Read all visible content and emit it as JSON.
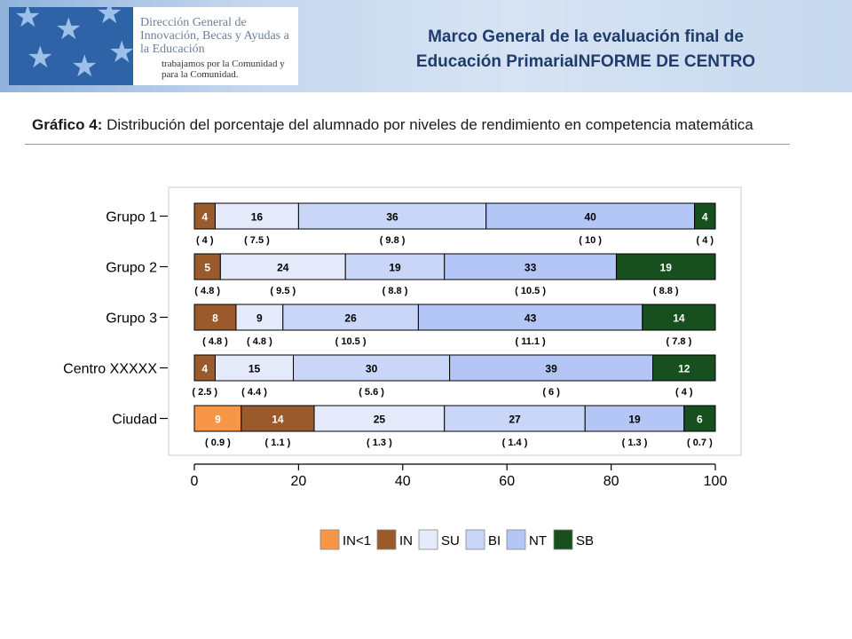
{
  "header": {
    "logo_text": "Dirección General de Innovación, Becas y Ayudas a la Educación",
    "logo_sub": "trabajamos por la Comunidad y para la Comunidad.",
    "title_line1": "Marco General de la evaluación final de",
    "title_line2": "Educación PrimariaINFORME DE CENTRO",
    "logo_mark_icon": "star-pattern-icon"
  },
  "chart_data": {
    "type": "bar",
    "orientation": "horizontal",
    "stacked": true,
    "title_label": "Gráfico 4:",
    "title": "Distribución del porcentaje del alumnado por niveles de rendimiento en competencia matemática",
    "xlim": [
      0,
      100
    ],
    "x_ticks": [
      0,
      20,
      40,
      60,
      80,
      100
    ],
    "legend_position": "bottom",
    "categories": [
      "Grupo 1",
      "Grupo 2",
      "Grupo 3",
      "Centro XXXXX",
      "Ciudad"
    ],
    "levels": [
      {
        "name": "IN<1",
        "color": "#f79646"
      },
      {
        "name": "IN",
        "color": "#9b5a2b"
      },
      {
        "name": "SU",
        "color": "#e5eafa"
      },
      {
        "name": "BI",
        "color": "#c9d6f7"
      },
      {
        "name": "NT",
        "color": "#b3c6f5"
      },
      {
        "name": "SB",
        "color": "#174f1f"
      }
    ],
    "rows": [
      {
        "category": "Grupo 1",
        "segments": [
          {
            "level": "IN",
            "value": 4,
            "se": "( 4 )"
          },
          {
            "level": "SU",
            "value": 16,
            "se": "( 7.5 )"
          },
          {
            "level": "BI",
            "value": 36,
            "se": "( 9.8 )"
          },
          {
            "level": "NT",
            "value": 40,
            "se": "( 10 )"
          },
          {
            "level": "SB",
            "value": 4,
            "se": "( 4 )"
          }
        ]
      },
      {
        "category": "Grupo 2",
        "segments": [
          {
            "level": "IN",
            "value": 5,
            "se": "( 4.8 )"
          },
          {
            "level": "SU",
            "value": 24,
            "se": "( 9.5 )"
          },
          {
            "level": "BI",
            "value": 19,
            "se": "( 8.8 )"
          },
          {
            "level": "NT",
            "value": 33,
            "se": "( 10.5 )"
          },
          {
            "level": "SB",
            "value": 19,
            "se": "( 8.8 )"
          }
        ]
      },
      {
        "category": "Grupo 3",
        "segments": [
          {
            "level": "IN",
            "value": 8,
            "se": "( 4.8 )"
          },
          {
            "level": "SU",
            "value": 9,
            "se": "( 4.8 )"
          },
          {
            "level": "BI",
            "value": 26,
            "se": "( 10.5 )"
          },
          {
            "level": "NT",
            "value": 43,
            "se": "( 11.1 )"
          },
          {
            "level": "SB",
            "value": 14,
            "se": "( 7.8 )"
          }
        ]
      },
      {
        "category": "Centro XXXXX",
        "segments": [
          {
            "level": "IN",
            "value": 4,
            "se": "( 2.5 )"
          },
          {
            "level": "SU",
            "value": 15,
            "se": "( 4.4 )"
          },
          {
            "level": "BI",
            "value": 30,
            "se": "( 5.6 )"
          },
          {
            "level": "NT",
            "value": 39,
            "se": "( 6 )"
          },
          {
            "level": "SB",
            "value": 12,
            "se": "( 4 )"
          }
        ]
      },
      {
        "category": "Ciudad",
        "segments": [
          {
            "level": "IN<1",
            "value": 9,
            "se": "( 0.9 )"
          },
          {
            "level": "IN",
            "value": 14,
            "se": "( 1.1 )"
          },
          {
            "level": "SU",
            "value": 25,
            "se": "( 1.3 )"
          },
          {
            "level": "BI",
            "value": 27,
            "se": "( 1.4 )"
          },
          {
            "level": "NT",
            "value": 19,
            "se": "( 1.3 )"
          },
          {
            "level": "SB",
            "value": 6,
            "se": "( 0.7 )"
          }
        ]
      }
    ]
  }
}
